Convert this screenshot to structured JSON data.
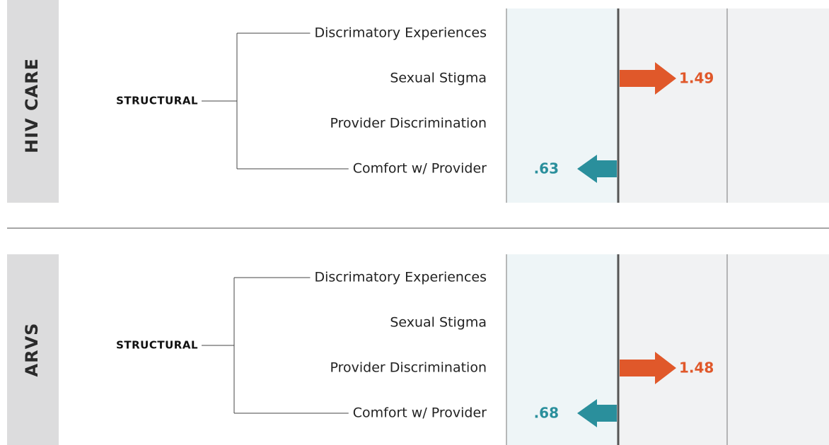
{
  "chart_data": [
    {
      "type": "arrow",
      "group": "HIV CARE",
      "level": "STRUCTURAL",
      "categories": [
        "Discrimatory Experiences",
        "Sexual Stigma",
        "Provider Discrimination",
        "Comfort w/ Provider"
      ],
      "values": [
        null,
        1.49,
        null,
        0.63
      ],
      "value_labels": [
        null,
        "1.49",
        null,
        ".63"
      ],
      "colors": {
        "up": "#e0582a",
        "down": "#2a8f9c"
      }
    },
    {
      "type": "arrow",
      "group": "ARVS",
      "level": "STRUCTURAL",
      "categories": [
        "Discrimatory Experiences",
        "Sexual Stigma",
        "Provider Discrimination",
        "Comfort w/ Provider"
      ],
      "values": [
        null,
        null,
        1.48,
        0.68
      ],
      "value_labels": [
        null,
        null,
        "1.48",
        ".68"
      ],
      "colors": {
        "up": "#e0582a",
        "down": "#2a8f9c"
      }
    }
  ]
}
